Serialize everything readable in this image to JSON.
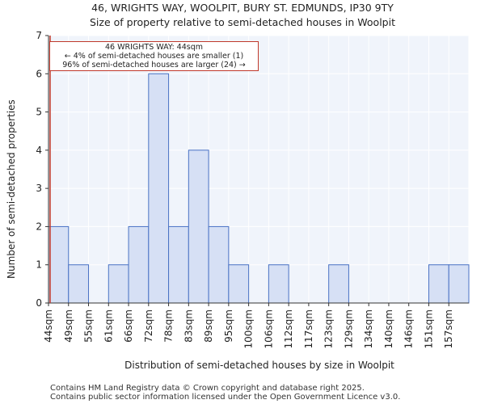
{
  "chart_data": {
    "type": "bar",
    "title": "46, WRIGHTS WAY, WOOLPIT, BURY ST. EDMUNDS, IP30 9TY",
    "subtitle": "Size of property relative to semi-detached houses in Woolpit",
    "xlabel": "Distribution of semi-detached houses by size in Woolpit",
    "ylabel": "Number of semi-detached properties",
    "categories": [
      "44sqm",
      "49sqm",
      "55sqm",
      "61sqm",
      "66sqm",
      "72sqm",
      "78sqm",
      "83sqm",
      "89sqm",
      "95sqm",
      "100sqm",
      "106sqm",
      "112sqm",
      "117sqm",
      "123sqm",
      "129sqm",
      "134sqm",
      "140sqm",
      "146sqm",
      "151sqm",
      "157sqm"
    ],
    "values": [
      2,
      1,
      0,
      1,
      2,
      6,
      2,
      4,
      2,
      1,
      0,
      1,
      0,
      0,
      1,
      0,
      0,
      0,
      0,
      1,
      1
    ],
    "ylim": [
      0,
      7
    ],
    "yticks": [
      0,
      1,
      2,
      3,
      4,
      5,
      6,
      7
    ],
    "grid": true,
    "bar_color": "#d6e0f5",
    "bar_edge_color": "#4a72c4",
    "marker_color": "#c0392b",
    "marker_category": "44sqm",
    "annotation": {
      "line1": "46 WRIGHTS WAY: 44sqm",
      "line2": "← 4% of semi-detached houses are smaller (1)",
      "line3": "96% of semi-detached houses are larger (24) →"
    }
  },
  "footer": {
    "line1": "Contains HM Land Registry data © Crown copyright and database right 2025.",
    "line2": "Contains public sector information licensed under the Open Government Licence v3.0."
  }
}
